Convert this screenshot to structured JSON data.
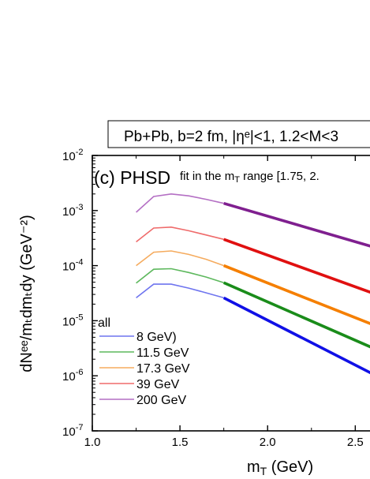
{
  "chart_data": {
    "type": "line",
    "title": "Pb+Pb, b=2 fm, |ηᵉ|<1, 1.2<M<3",
    "panel_label": "(c) PHSD",
    "annotation": "fit in the m",
    "annotation_sub": "T",
    "annotation_rest": " range [1.75, 2.",
    "xlabel": "m",
    "xlabel_sub": "T",
    "xlabel_rest": " (GeV)",
    "ylabel": "dNᵉᵉ/mₜdmₜdy (GeV⁻²)",
    "xlim": [
      1.0,
      2.62
    ],
    "ylim": [
      1e-07,
      0.01
    ],
    "yscale": "log",
    "x_ticks": [
      "1.0",
      "1.5",
      "2.0",
      "2.5"
    ],
    "y_ticks": [
      {
        "base": "10",
        "exp": "-7",
        "value": 1e-07
      },
      {
        "base": "10",
        "exp": "-6",
        "value": 1e-06
      },
      {
        "base": "10",
        "exp": "-5",
        "value": 1e-05
      },
      {
        "base": "10",
        "exp": "-4",
        "value": 0.0001
      },
      {
        "base": "10",
        "exp": "-3",
        "value": 0.001
      },
      {
        "base": "10",
        "exp": "-2",
        "value": 0.01
      }
    ],
    "legend_header": "all",
    "legend_placement": "bottom-left",
    "series": [
      {
        "name": "8 GeV)",
        "color": "#6f75ef",
        "fit_color": "#1010e6",
        "x": [
          1.25,
          1.35,
          1.45,
          1.55,
          1.65,
          1.75
        ],
        "y": [
          2.6e-05,
          4.6e-05,
          4.6e-05,
          3.9e-05,
          3.2e-05,
          2.6e-05
        ],
        "fit_x": [
          1.75,
          2.62
        ],
        "fit_y": [
          2.6e-05,
          1e-06
        ]
      },
      {
        "name": "11.5 GeV",
        "color": "#5db85d",
        "fit_color": "#1a8c1a",
        "x": [
          1.25,
          1.35,
          1.45,
          1.55,
          1.65,
          1.75
        ],
        "y": [
          4.8e-05,
          8.6e-05,
          8.8e-05,
          7.5e-05,
          6.2e-05,
          4.9e-05
        ],
        "fit_x": [
          1.75,
          2.62
        ],
        "fit_y": [
          4.9e-05,
          3e-06
        ]
      },
      {
        "name": "17.3 GeV",
        "color": "#f5ab5e",
        "fit_color": "#f57f00",
        "x": [
          1.25,
          1.35,
          1.45,
          1.55,
          1.65,
          1.75
        ],
        "y": [
          0.0001,
          0.000175,
          0.000185,
          0.00016,
          0.00013,
          0.0001
        ],
        "fit_x": [
          1.75,
          2.62
        ],
        "fit_y": [
          0.0001,
          8e-06
        ]
      },
      {
        "name": "39 GeV",
        "color": "#ef6b6b",
        "fit_color": "#e01010",
        "x": [
          1.25,
          1.35,
          1.45,
          1.55,
          1.65,
          1.75
        ],
        "y": [
          0.00027,
          0.00048,
          0.0005,
          0.00043,
          0.00036,
          0.0003
        ],
        "fit_x": [
          1.75,
          2.62
        ],
        "fit_y": [
          0.0003,
          3e-05
        ]
      },
      {
        "name": "200 GeV",
        "color": "#b46fc4",
        "fit_color": "#7f1f8f",
        "x": [
          1.25,
          1.35,
          1.45,
          1.55,
          1.65,
          1.75
        ],
        "y": [
          0.00093,
          0.0018,
          0.002,
          0.00185,
          0.0016,
          0.00135
        ],
        "fit_x": [
          1.75,
          2.62
        ],
        "fit_y": [
          0.00135,
          0.00021
        ]
      }
    ]
  }
}
